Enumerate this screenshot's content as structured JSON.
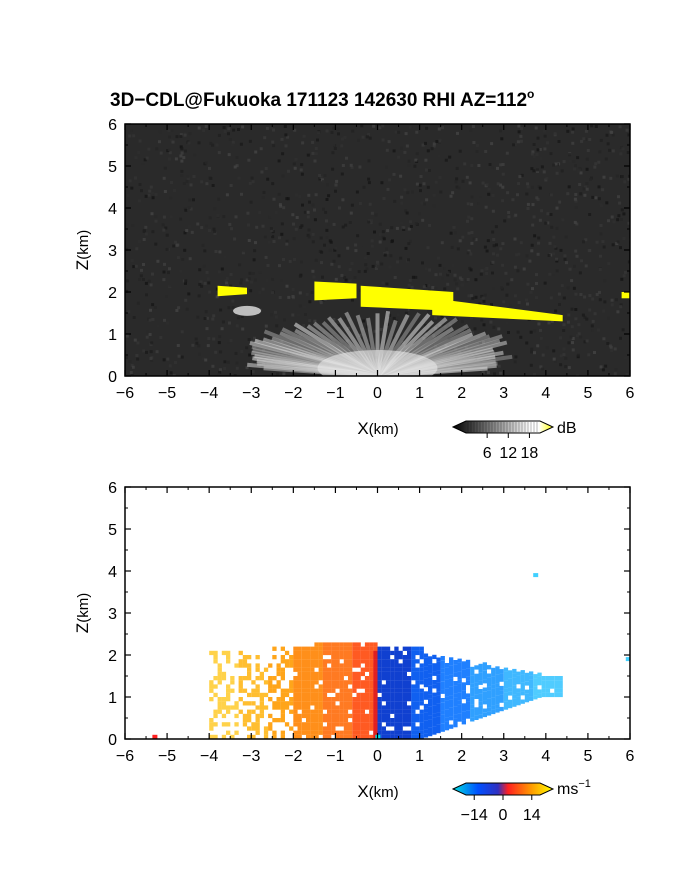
{
  "figure": {
    "title_main": "3D−CDL@Fukuoka 171123 142630 RHI AZ=112",
    "title_degree": "o"
  },
  "chart_data": [
    {
      "type": "heatmap",
      "variable": "reflectivity",
      "xlabel_main": "X",
      "xlabel_unit": "(km)",
      "ylabel_main": "Z",
      "ylabel_unit": "(km)",
      "xlim": [
        -6,
        6
      ],
      "ylim": [
        0,
        6
      ],
      "x_ticks": [
        -6,
        -5,
        -4,
        -3,
        -2,
        -1,
        0,
        1,
        2,
        3,
        4,
        5,
        6
      ],
      "x_tick_labels": [
        "−6",
        "−5",
        "−4",
        "−3",
        "−2",
        "−1",
        "0",
        "1",
        "2",
        "3",
        "4",
        "5",
        "6"
      ],
      "y_ticks": [
        0,
        1,
        2,
        3,
        4,
        5,
        6
      ],
      "y_tick_labels": [
        "0",
        "1",
        "2",
        "3",
        "4",
        "5",
        "6"
      ],
      "background_color": "#2a2a2a",
      "colorbar": {
        "unit": "dB",
        "range": [
          0,
          21
        ],
        "ticks": [
          6,
          12,
          18
        ],
        "tick_labels": [
          "6",
          "12",
          "18"
        ],
        "colors": [
          "#000000",
          "#ffffff",
          "#ffff00"
        ]
      },
      "high_echo_color": "#ffff00",
      "features": {
        "fan_origin": [
          0,
          0
        ],
        "fan_angle_range_deg": [
          12,
          168
        ],
        "fan_max_range_km": 4.6,
        "echo_layer_segments": [
          {
            "x": [
              -3.8,
              -3.1
            ],
            "z_bottom": [
              1.9,
              1.95
            ],
            "z_top": [
              2.15,
              2.1
            ]
          },
          {
            "x": [
              -1.5,
              -0.5
            ],
            "z_bottom": [
              1.8,
              1.85
            ],
            "z_top": [
              2.25,
              2.2
            ]
          },
          {
            "x": [
              -0.4,
              1.8
            ],
            "z_bottom": [
              1.65,
              1.55
            ],
            "z_top": [
              2.15,
              2.0
            ]
          },
          {
            "x": [
              1.3,
              4.4
            ],
            "z_bottom": [
              1.45,
              1.3
            ],
            "z_top": [
              1.85,
              1.45
            ]
          },
          {
            "x": [
              5.8,
              6.0
            ],
            "z_bottom": [
              1.85,
              1.85
            ],
            "z_top": [
              2.0,
              2.0
            ]
          }
        ]
      }
    },
    {
      "type": "heatmap",
      "variable": "doppler_velocity",
      "xlabel_main": "X",
      "xlabel_unit": "(km)",
      "ylabel_main": "Z",
      "ylabel_unit": "(km)",
      "xlim": [
        -6,
        6
      ],
      "ylim": [
        0,
        6
      ],
      "x_ticks": [
        -6,
        -5,
        -4,
        -3,
        -2,
        -1,
        0,
        1,
        2,
        3,
        4,
        5,
        6
      ],
      "x_tick_labels": [
        "−6",
        "−5",
        "−4",
        "−3",
        "−2",
        "−1",
        "0",
        "1",
        "2",
        "3",
        "4",
        "5",
        "6"
      ],
      "y_ticks": [
        0,
        1,
        2,
        3,
        4,
        5,
        6
      ],
      "y_tick_labels": [
        "0",
        "1",
        "2",
        "3",
        "4",
        "5",
        "6"
      ],
      "background_color": "#ffffff",
      "colorbar": {
        "unit": "ms",
        "unit_exponent": "−1",
        "range": [
          -18,
          18
        ],
        "ticks": [
          -14,
          0,
          14
        ],
        "tick_labels": [
          "−14",
          "0",
          "14"
        ],
        "colors": [
          "#00e0e0",
          "#0050ff",
          "#3030c0",
          "#ff2020",
          "#ff9900",
          "#ffff00"
        ]
      },
      "features": {
        "velocity_field_top_km": 2.25,
        "negative_side_x_range": [
          -4.0,
          0.0
        ],
        "positive_side_x_range": [
          0.0,
          4.4
        ],
        "isolated_points": [
          {
            "x": 3.7,
            "z": 3.9,
            "color": "#40d0ff"
          },
          {
            "x": 5.9,
            "z": 1.9,
            "color": "#40d0ff"
          },
          {
            "x": -5.35,
            "z": 0.05,
            "color": "#ff2020"
          },
          {
            "x": -0.05,
            "z": 0.05,
            "color": "#00e0e0"
          }
        ]
      }
    }
  ]
}
